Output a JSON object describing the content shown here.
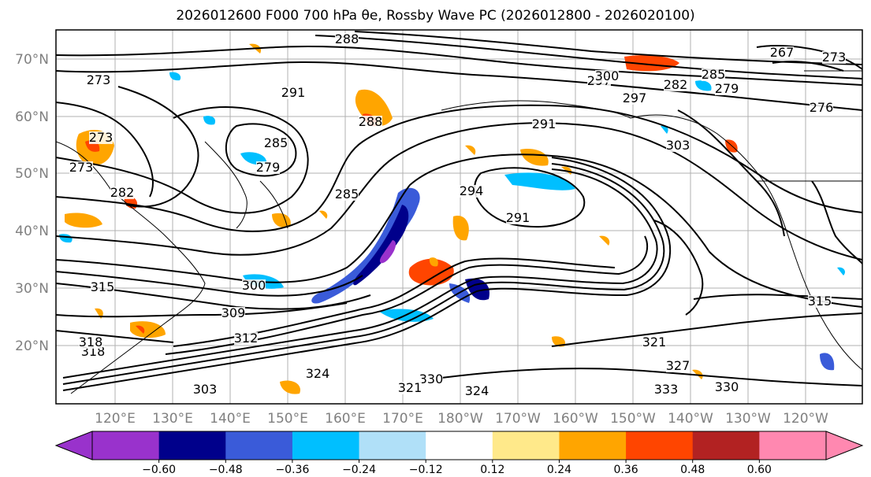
{
  "title": "2026012600 F000 700 hPa θe, Rossby Wave PC (2026012800 - 2026020100)",
  "map": {
    "region": "North Pacific",
    "projection": "Plate Carrée",
    "lat_labels": [
      "70°N",
      "60°N",
      "50°N",
      "40°N",
      "30°N",
      "20°N"
    ],
    "lon_labels": [
      "120°E",
      "130°E",
      "140°E",
      "150°E",
      "160°E",
      "170°E",
      "180°W",
      "170°W",
      "160°W",
      "150°W",
      "140°W",
      "130°W",
      "120°W"
    ],
    "contour_labels": [
      "273",
      "291",
      "291",
      "297",
      "285",
      "282",
      "279",
      "276",
      "273",
      "267",
      "273",
      "279",
      "285",
      "288",
      "288",
      "291",
      "294",
      "303",
      "282",
      "285",
      "297",
      "300",
      "309",
      "312",
      "315",
      "318",
      "321",
      "324",
      "330",
      "333",
      "330",
      "327",
      "321",
      "318",
      "324",
      "315",
      "300",
      "303",
      "273"
    ],
    "contour_color": "#000000",
    "coastline_color": "#000000",
    "grid_color": "#b0b0b0"
  },
  "colorbar": {
    "ticks": [
      "−0.60",
      "−0.48",
      "−0.36",
      "−0.24",
      "−0.12",
      "0.12",
      "0.24",
      "0.36",
      "0.48",
      "0.60"
    ],
    "colors": [
      "#9932cc",
      "#00008b",
      "#3a5bd9",
      "#00bfff",
      "#b0e0f8",
      "#ffffff",
      "#ffe98a",
      "#ffa500",
      "#ff4500",
      "#b22222",
      "#ff88b0"
    ],
    "under_color": "#9932cc",
    "over_color": "#ff88b0"
  }
}
